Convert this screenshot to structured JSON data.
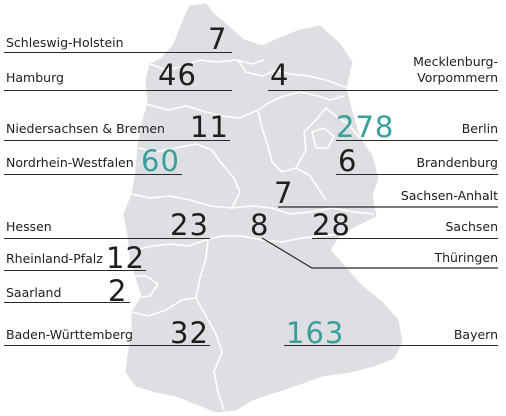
{
  "colors": {
    "map_fill": "#dedfe3",
    "border": "#ffffff",
    "text": "#1f1f1f",
    "highlight": "#3a9f9c"
  },
  "states": {
    "schleswig_holstein": {
      "label": "Schleswig-Holstein",
      "count": "7",
      "highlight": false
    },
    "hamburg": {
      "label": "Hamburg",
      "count": "46",
      "highlight": false
    },
    "mecklenburg_vorpommern": {
      "label_line1": "Mecklenburg-",
      "label_line2": "Vorpommern",
      "count": "4",
      "highlight": false
    },
    "niedersachsen_bremen": {
      "label": "Niedersachsen & Bremen",
      "count": "11",
      "highlight": false
    },
    "berlin": {
      "label": "Berlin",
      "count": "278",
      "highlight": true
    },
    "nordrhein_westfalen": {
      "label": "Nordrhein-Westfalen",
      "count": "60",
      "highlight": true
    },
    "brandenburg": {
      "label": "Brandenburg",
      "count": "6",
      "highlight": false
    },
    "sachsen_anhalt": {
      "label": "Sachsen-Anhalt",
      "count": "7",
      "highlight": false
    },
    "hessen": {
      "label": "Hessen",
      "count": "23",
      "highlight": false
    },
    "thueringen": {
      "label": "Thüringen",
      "count": "8",
      "highlight": false
    },
    "sachsen": {
      "label": "Sachsen",
      "count": "28",
      "highlight": false
    },
    "rheinland_pfalz": {
      "label": "Rheinland-Pfalz",
      "count": "12",
      "highlight": false
    },
    "saarland": {
      "label": "Saarland",
      "count": "2",
      "highlight": false
    },
    "baden_wuerttemberg": {
      "label": "Baden-Württemberg",
      "count": "32",
      "highlight": false
    },
    "bayern": {
      "label": "Bayern",
      "count": "163",
      "highlight": true
    }
  }
}
